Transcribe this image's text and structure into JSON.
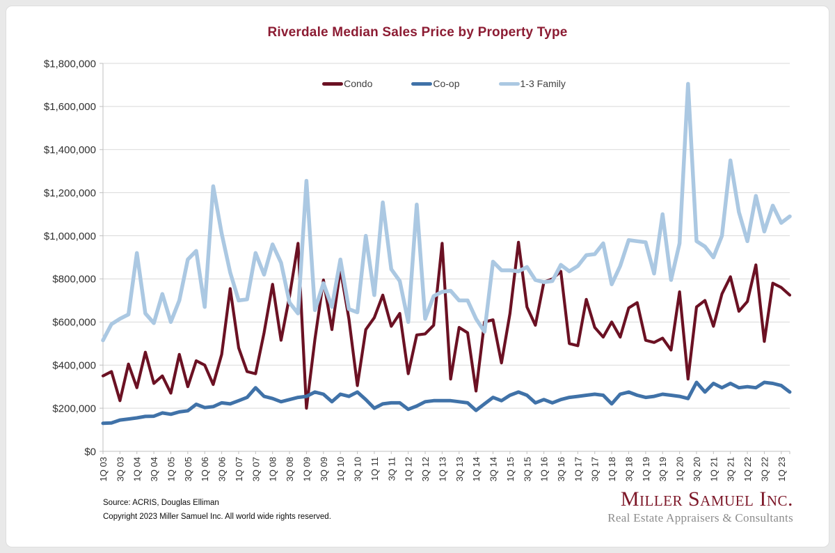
{
  "title": "Riverdale Median Sales Price by Property Type",
  "colors": {
    "title_red": "#8C1C33",
    "logo_red": "#7D1728",
    "gridline": "#d9d9d9",
    "axis": "#bfbfbf",
    "tick_label": "#303030",
    "card_bg": "#ffffff",
    "frame_bg": "#e9e9e9"
  },
  "legend": [
    {
      "label": "Condo",
      "color": "#6B1123"
    },
    {
      "label": "Co-op",
      "color": "#4072A8"
    },
    {
      "label": "1-3 Family",
      "color": "#ABC8E2"
    }
  ],
  "footer": {
    "source": "Source: ACRIS, Douglas Elliman",
    "copyright": "Copyright 2023 Miller Samuel Inc.  All world wide rights reserved."
  },
  "logo": {
    "name": "Miller Samuel Inc.",
    "tagline": "Real Estate Appraisers & Consultants"
  },
  "chart_data": {
    "type": "line",
    "title": "Riverdale Median Sales Price by Property Type",
    "xlabel": "",
    "ylabel": "",
    "ylim": [
      0,
      1800000
    ],
    "y_tick_step": 200000,
    "grid": true,
    "legend_position": "top-center",
    "y_tick_labels": [
      "$0",
      "$200,000",
      "$400,000",
      "$600,000",
      "$800,000",
      "$1,000,000",
      "$1,200,000",
      "$1,400,000",
      "$1,600,000",
      "$1,800,000"
    ],
    "x_tick_labels": [
      "1Q 03",
      "3Q 03",
      "1Q 04",
      "3Q 04",
      "1Q 05",
      "3Q 05",
      "1Q 06",
      "3Q 06",
      "1Q 07",
      "3Q 07",
      "1Q 08",
      "3Q 08",
      "1Q 09",
      "3Q 09",
      "1Q 10",
      "3Q 10",
      "1Q 11",
      "3Q 11",
      "1Q 12",
      "3Q 12",
      "1Q 13",
      "3Q 13",
      "1Q 14",
      "3Q 14",
      "1Q 15",
      "3Q 15",
      "1Q 16",
      "3Q 16",
      "1Q 17",
      "3Q 17",
      "1Q 18",
      "3Q 18",
      "1Q 19",
      "3Q 19",
      "1Q 20",
      "3Q 20",
      "1Q 21",
      "3Q 21",
      "1Q 22",
      "3Q 22",
      "1Q 23"
    ],
    "x": [
      "1Q 03",
      "2Q 03",
      "3Q 03",
      "4Q 03",
      "1Q 04",
      "2Q 04",
      "3Q 04",
      "4Q 04",
      "1Q 05",
      "2Q 05",
      "3Q 05",
      "4Q 05",
      "1Q 06",
      "2Q 06",
      "3Q 06",
      "4Q 06",
      "1Q 07",
      "2Q 07",
      "3Q 07",
      "4Q 07",
      "1Q 08",
      "2Q 08",
      "3Q 08",
      "4Q 08",
      "1Q 09",
      "2Q 09",
      "3Q 09",
      "4Q 09",
      "1Q 10",
      "2Q 10",
      "3Q 10",
      "4Q 10",
      "1Q 11",
      "2Q 11",
      "3Q 11",
      "4Q 11",
      "1Q 12",
      "2Q 12",
      "3Q 12",
      "4Q 12",
      "1Q 13",
      "2Q 13",
      "3Q 13",
      "4Q 13",
      "1Q 14",
      "2Q 14",
      "3Q 14",
      "4Q 14",
      "1Q 15",
      "2Q 15",
      "3Q 15",
      "4Q 15",
      "1Q 16",
      "2Q 16",
      "3Q 16",
      "4Q 16",
      "1Q 17",
      "2Q 17",
      "3Q 17",
      "4Q 17",
      "1Q 18",
      "2Q 18",
      "3Q 18",
      "4Q 18",
      "1Q 19",
      "2Q 19",
      "3Q 19",
      "4Q 19",
      "1Q 20",
      "2Q 20",
      "3Q 20",
      "4Q 20",
      "1Q 21",
      "2Q 21",
      "3Q 21",
      "4Q 21",
      "1Q 22",
      "2Q 22",
      "3Q 22",
      "4Q 22",
      "1Q 23",
      "2Q 23"
    ],
    "series": [
      {
        "name": "Condo",
        "color": "#6B1123",
        "stroke_width": 4.2,
        "values": [
          350000,
          370000,
          235000,
          405000,
          295000,
          460000,
          315000,
          350000,
          270000,
          450000,
          300000,
          420000,
          400000,
          310000,
          450000,
          755000,
          480000,
          370000,
          360000,
          550000,
          775000,
          515000,
          720000,
          965000,
          200000,
          520000,
          795000,
          565000,
          845000,
          615000,
          305000,
          565000,
          620000,
          725000,
          580000,
          640000,
          360000,
          540000,
          545000,
          585000,
          965000,
          335000,
          575000,
          550000,
          280000,
          600000,
          610000,
          410000,
          640000,
          970000,
          670000,
          585000,
          785000,
          800000,
          835000,
          500000,
          490000,
          705000,
          575000,
          530000,
          600000,
          530000,
          665000,
          690000,
          515000,
          505000,
          525000,
          470000,
          740000,
          335000,
          670000,
          700000,
          580000,
          730000,
          810000,
          650000,
          695000,
          865000,
          510000,
          780000,
          760000,
          725000
        ]
      },
      {
        "name": "Co-op",
        "color": "#4072A8",
        "stroke_width": 5,
        "values": [
          130000,
          132000,
          145000,
          150000,
          155000,
          162000,
          163000,
          178000,
          172000,
          183000,
          188000,
          218000,
          203000,
          207000,
          225000,
          220000,
          235000,
          250000,
          295000,
          255000,
          245000,
          230000,
          240000,
          250000,
          255000,
          275000,
          265000,
          230000,
          265000,
          255000,
          275000,
          240000,
          200000,
          220000,
          225000,
          225000,
          195000,
          210000,
          230000,
          235000,
          235000,
          235000,
          230000,
          225000,
          190000,
          220000,
          250000,
          235000,
          260000,
          275000,
          260000,
          225000,
          240000,
          225000,
          240000,
          250000,
          255000,
          260000,
          265000,
          260000,
          220000,
          265000,
          275000,
          260000,
          250000,
          255000,
          265000,
          260000,
          255000,
          245000,
          320000,
          275000,
          315000,
          295000,
          315000,
          295000,
          300000,
          295000,
          320000,
          315000,
          305000,
          275000
        ]
      },
      {
        "name": "1-3 Family",
        "color": "#ABC8E2",
        "stroke_width": 5.5,
        "values": [
          515000,
          590000,
          615000,
          635000,
          920000,
          640000,
          595000,
          730000,
          600000,
          700000,
          890000,
          930000,
          670000,
          1230000,
          1010000,
          830000,
          700000,
          705000,
          920000,
          820000,
          960000,
          875000,
          690000,
          640000,
          1255000,
          655000,
          780000,
          670000,
          890000,
          660000,
          645000,
          1000000,
          725000,
          1155000,
          845000,
          790000,
          600000,
          1145000,
          615000,
          720000,
          740000,
          745000,
          700000,
          700000,
          615000,
          555000,
          880000,
          840000,
          840000,
          835000,
          855000,
          795000,
          785000,
          790000,
          865000,
          835000,
          860000,
          910000,
          915000,
          965000,
          775000,
          860000,
          980000,
          975000,
          970000,
          825000,
          1100000,
          795000,
          965000,
          1705000,
          975000,
          950000,
          900000,
          1000000,
          1350000,
          1110000,
          975000,
          1185000,
          1020000,
          1140000,
          1060000,
          1090000
        ]
      }
    ]
  }
}
